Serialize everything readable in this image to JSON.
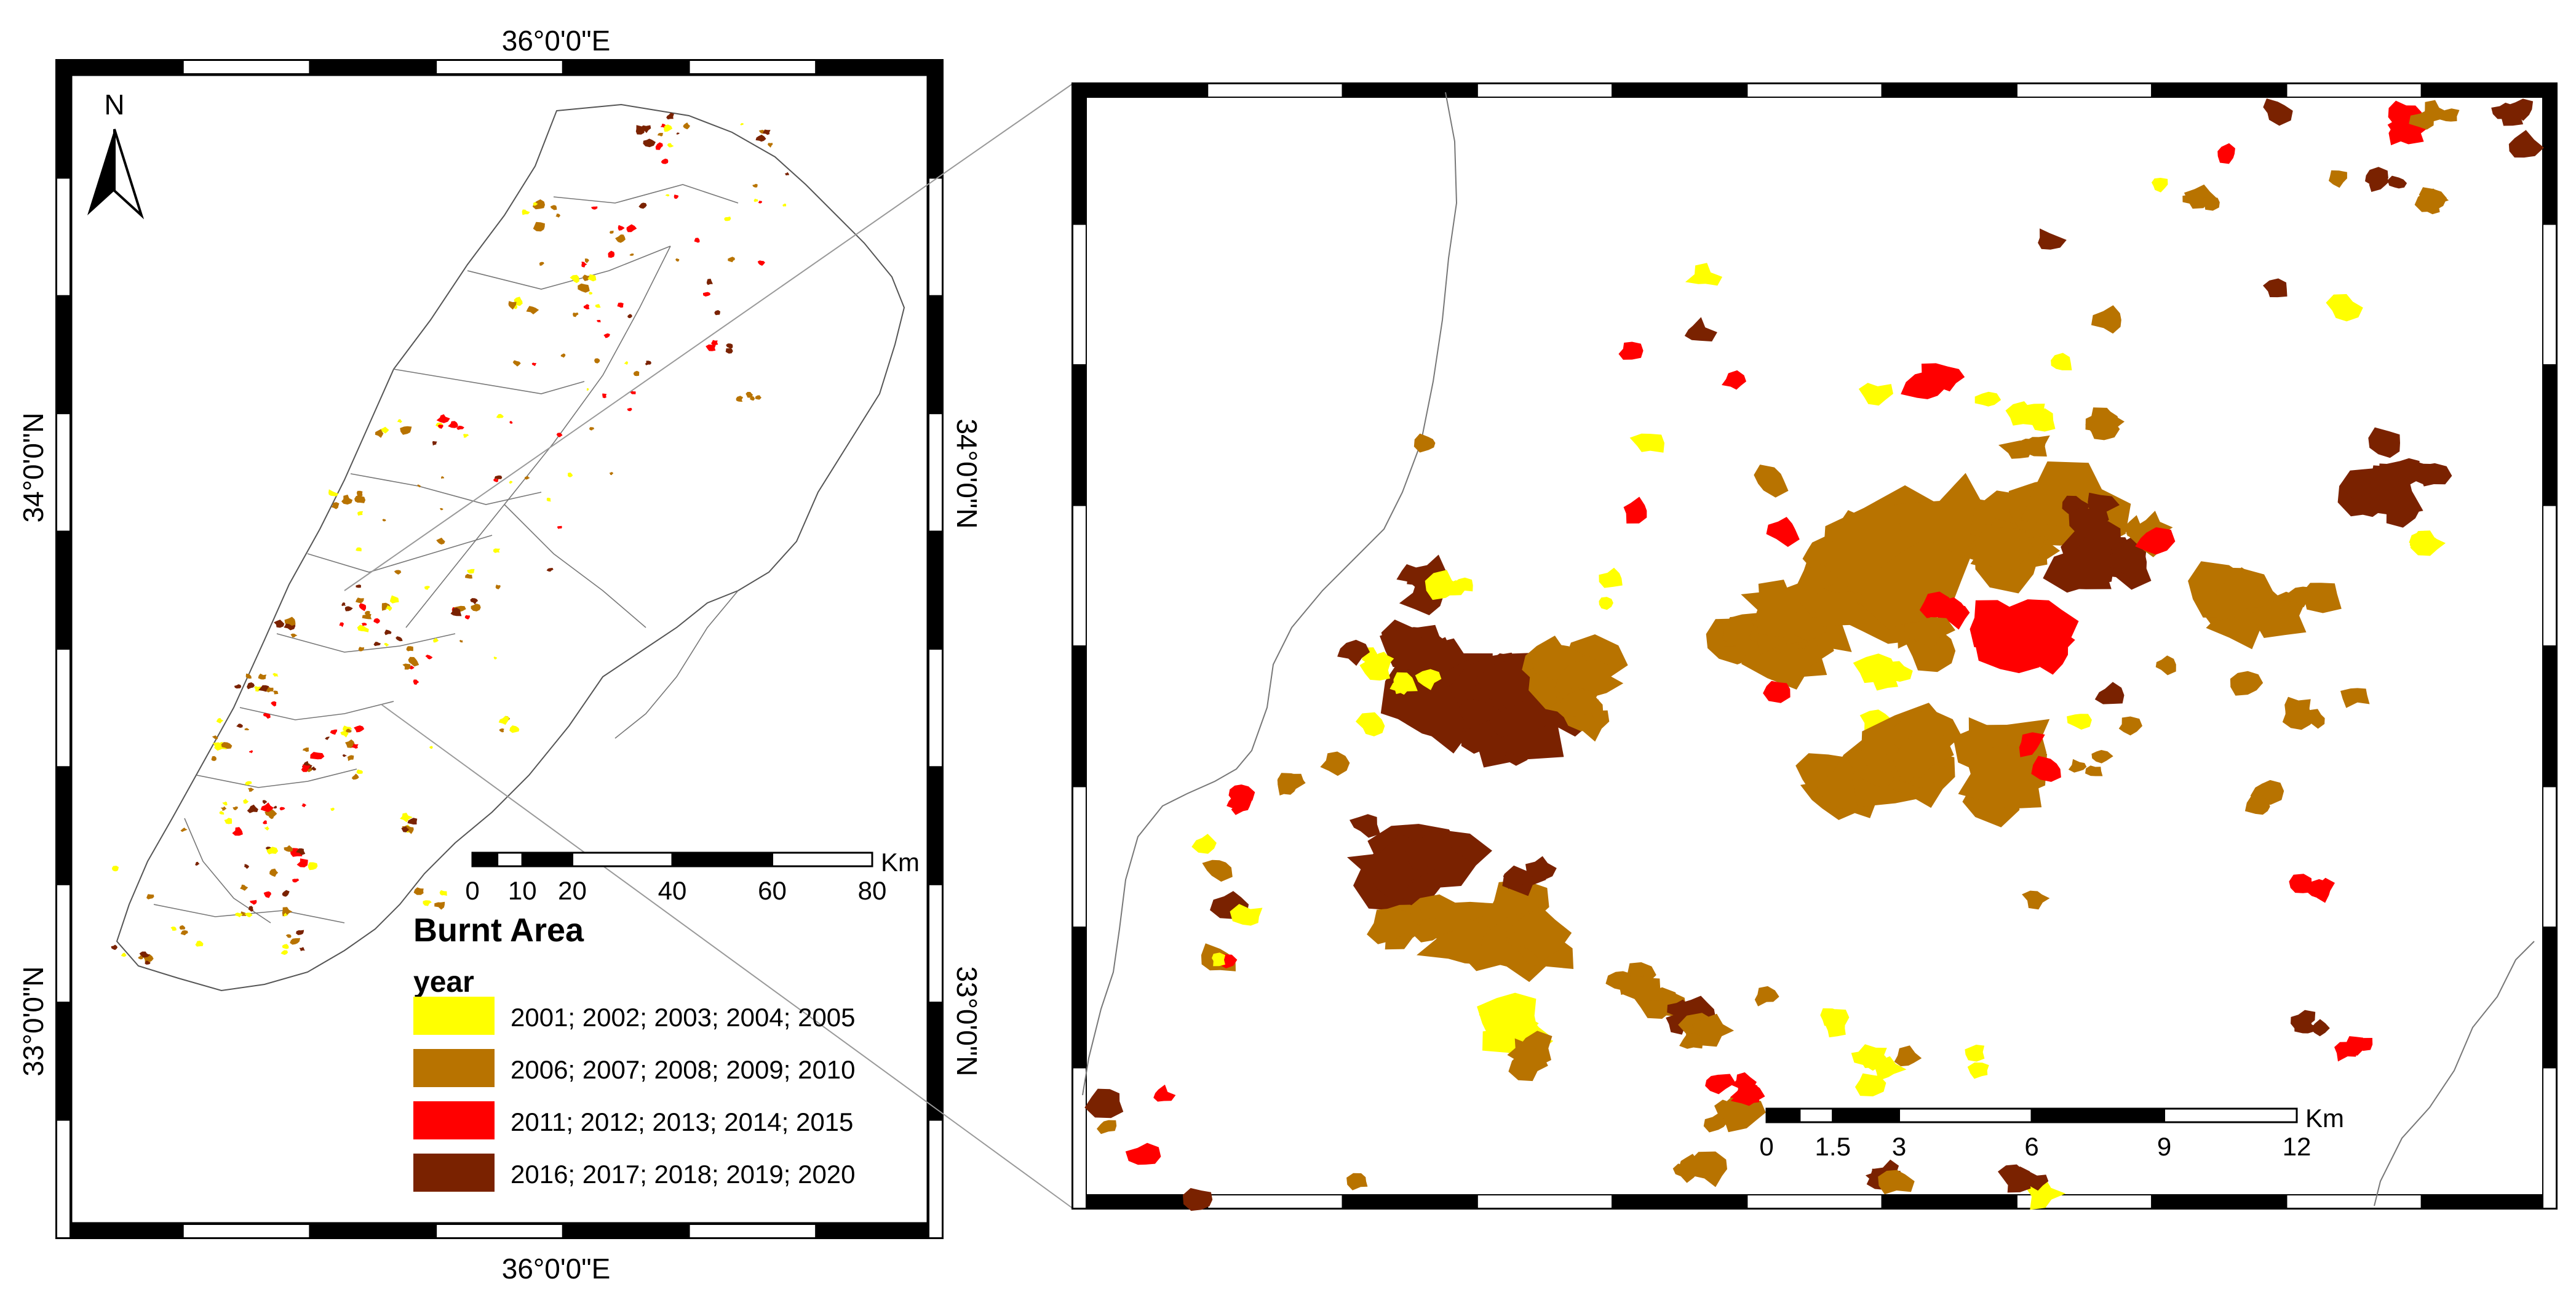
{
  "overview_map": {
    "coord_top": "36°0'0\"E",
    "coord_bottom": "36°0'0\"E",
    "coord_left_upper": "34°0'0\"N",
    "coord_right_upper": "34°0'0\"N",
    "coord_left_lower": "33°0'0\"N",
    "coord_right_lower": "33°0'0\"N",
    "north_label": "N",
    "scale_bar": {
      "unit": "Km",
      "ticks": [
        "0",
        "10",
        "20",
        "40",
        "60",
        "80"
      ]
    }
  },
  "legend": {
    "title": "Burnt Area",
    "field": "year",
    "classes": [
      {
        "label": "2001; 2002; 2003; 2004; 2005",
        "color": "#ffff00"
      },
      {
        "label": "2006; 2007; 2008; 2009; 2010",
        "color": "#b87300"
      },
      {
        "label": "2011; 2012; 2013; 2014; 2015",
        "color": "#ff0000"
      },
      {
        "label": "2016; 2017; 2018; 2019; 2020",
        "color": "#7a2200"
      }
    ]
  },
  "inset_map": {
    "scale_bar": {
      "unit": "Km",
      "ticks": [
        "0",
        "1.5",
        "3",
        "6",
        "9",
        "12"
      ]
    }
  }
}
